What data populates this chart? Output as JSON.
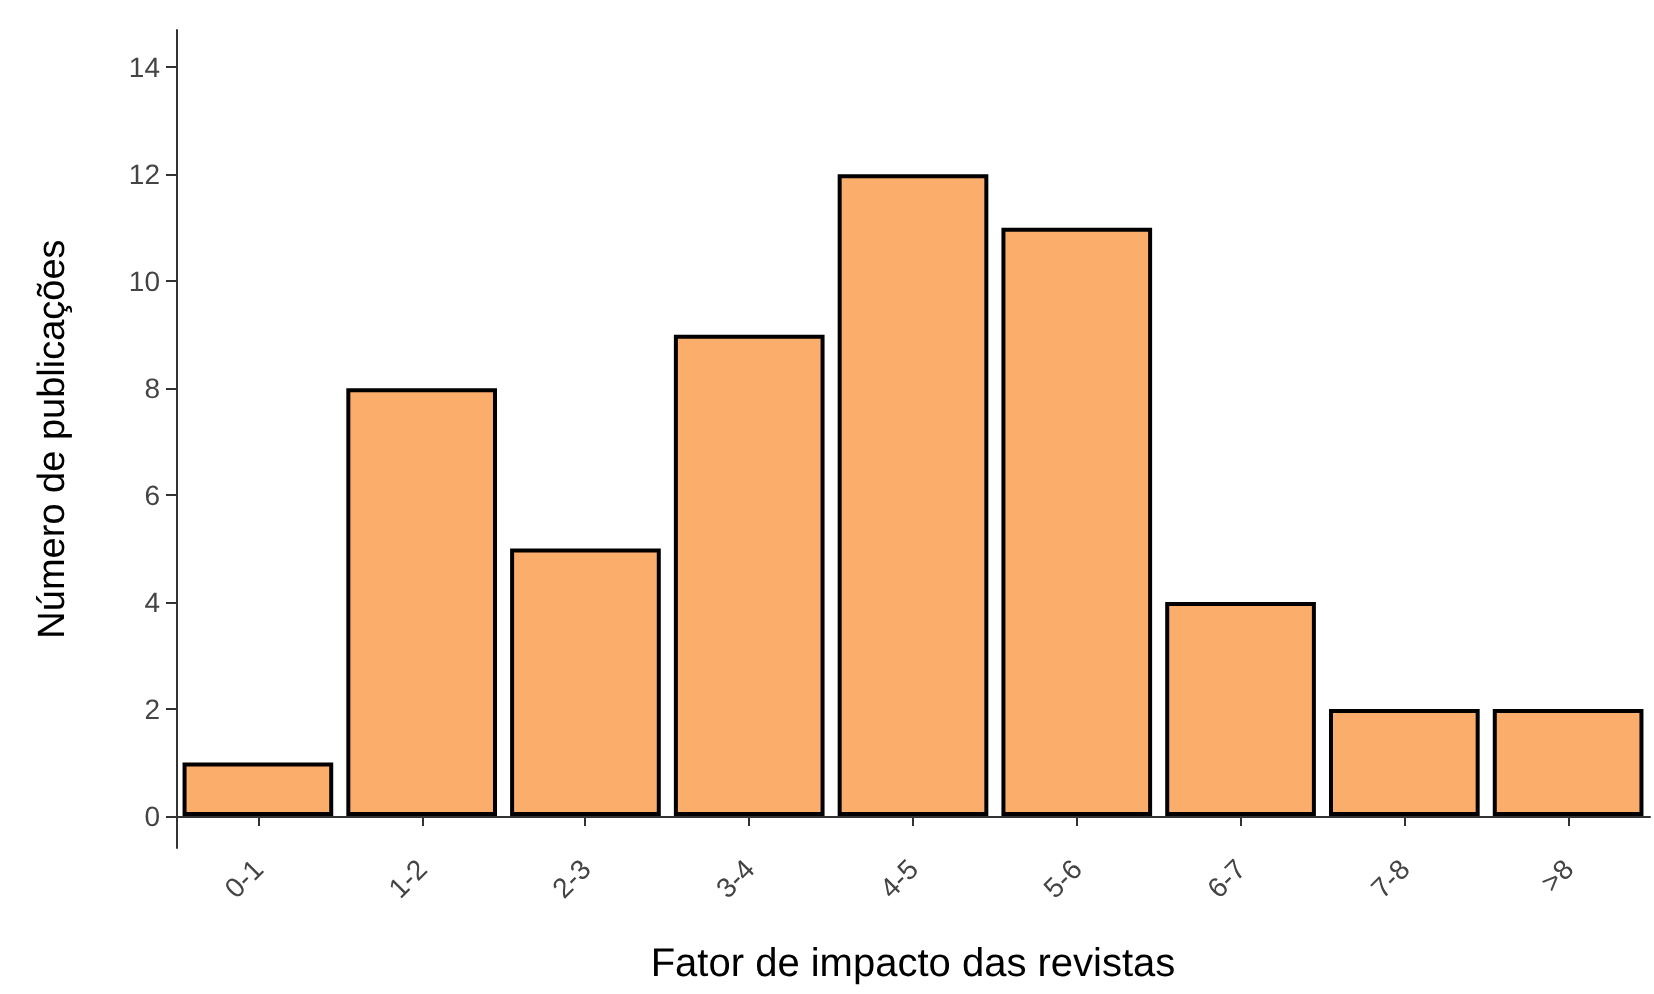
{
  "chart_data": {
    "type": "bar",
    "xlabel": "Fator de impacto das revistas",
    "ylabel": "Número de publicações",
    "categories": [
      "0-1",
      "1-2",
      "2-3",
      "3-4",
      "4-5",
      "5-6",
      "6-7",
      "7-8",
      ">8"
    ],
    "values": [
      1,
      8,
      5,
      9,
      12,
      11,
      4,
      2,
      2
    ],
    "color": "#fbad6b",
    "ylim": [
      -0.6,
      14.7
    ],
    "yticks": [
      0,
      2,
      4,
      6,
      8,
      10,
      12,
      14
    ],
    "grid": false
  }
}
